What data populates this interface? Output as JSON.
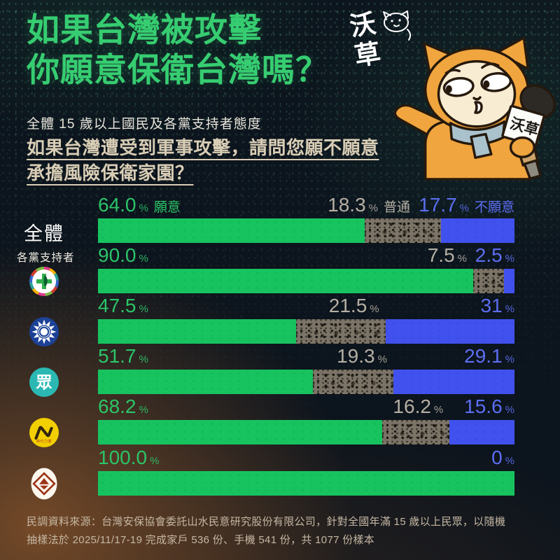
{
  "page": {
    "title_line1": "如果台灣被攻擊",
    "title_line2": "你願意保衛台灣嗎？",
    "subtitle": "全體 15 歲以上國民及各黨支持者態度",
    "question_line1": "如果台灣遭受到軍事攻擊，請問您願不願意",
    "question_line2": "承擔風險保衛家園？",
    "brand_logo_text": "沃草",
    "mascot_mic_label": "沃草",
    "npp_logo_text": "時代力量",
    "tpp_logo_glyph": "眾"
  },
  "chart_data": {
    "type": "bar",
    "variant": "horizontal-stacked",
    "unit": "%",
    "xlim": [
      0,
      100
    ],
    "series_names": [
      "願意",
      "普通",
      "不願意"
    ],
    "colors": {
      "willing": "#17c35f",
      "neutral": "#7c7467",
      "unwilling": "#4051ee",
      "label_willing": "#2cc468",
      "label_neutral": "#b5afa3",
      "label_unwilling": "#5c6ef3",
      "title_green": "#36cd71"
    },
    "group_caption": "各黨支持者",
    "rows": [
      {
        "key": "overall",
        "category": "全體",
        "icon": "overall-label",
        "willing": 64.0,
        "neutral": 18.3,
        "unwilling": 17.7,
        "labels": {
          "willing": "64.0",
          "neutral": "18.3",
          "unwilling": "17.7"
        },
        "suffix": {
          "willing": "願意",
          "neutral": "普通",
          "unwilling": "不願意"
        }
      },
      {
        "key": "dpp",
        "category": "民進黨支持者",
        "icon": "dpp-logo",
        "willing": 90.0,
        "neutral": 7.5,
        "unwilling": 2.5,
        "labels": {
          "willing": "90.0",
          "neutral": "7.5",
          "unwilling": "2.5"
        }
      },
      {
        "key": "kmt",
        "category": "國民黨支持者",
        "icon": "kmt-logo",
        "willing": 47.5,
        "neutral": 21.5,
        "unwilling": 31,
        "labels": {
          "willing": "47.5",
          "neutral": "21.5",
          "unwilling": "31"
        }
      },
      {
        "key": "tpp",
        "category": "民眾黨支持者",
        "icon": "tpp-logo",
        "willing": 51.7,
        "neutral": 19.3,
        "unwilling": 29.1,
        "labels": {
          "willing": "51.7",
          "neutral": "19.3",
          "unwilling": "29.1"
        }
      },
      {
        "key": "npp",
        "category": "時代力量支持者",
        "icon": "npp-logo",
        "willing": 68.2,
        "neutral": 16.2,
        "unwilling": 15.6,
        "labels": {
          "willing": "68.2",
          "neutral": "16.2",
          "unwilling": "15.6"
        }
      },
      {
        "key": "tsp",
        "category": "台灣基進支持者",
        "icon": "tsp-logo",
        "willing": 100.0,
        "neutral": 0,
        "unwilling": 0,
        "labels": {
          "willing": "100.0",
          "neutral": null,
          "unwilling": "0"
        }
      }
    ]
  },
  "footer": {
    "line1": "民調資料來源：台灣安保協會委託山水民意研究股份有限公司，針對全國年滿 15 歲以上民眾，以隨機",
    "line2": "抽樣法於 2025/11/17-19 完成家戶 536 份、手機 541 份，共 1077 份樣本"
  }
}
